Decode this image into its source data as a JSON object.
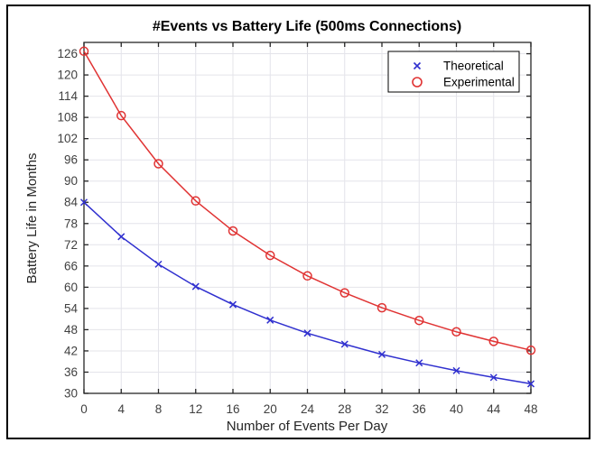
{
  "figure": {
    "background_color": "#ffffff",
    "border_color": "#000000",
    "axes_color": "#262626",
    "grid_color": "#e4e4ea",
    "tick_label_color": "#404040"
  },
  "chart_data": {
    "type": "line",
    "title": "#Events vs Battery Life (500ms Connections)",
    "xlabel": "Number of Events Per Day",
    "ylabel": "Battery Life in Months",
    "x": [
      0,
      4,
      8,
      12,
      16,
      20,
      24,
      28,
      32,
      36,
      40,
      44,
      48
    ],
    "xticks": [
      0,
      4,
      8,
      12,
      16,
      20,
      24,
      28,
      32,
      36,
      40,
      44,
      48
    ],
    "yticks": [
      30,
      36,
      42,
      48,
      54,
      60,
      66,
      72,
      78,
      84,
      90,
      96,
      102,
      108,
      114,
      120,
      126
    ],
    "xlim": [
      0,
      48
    ],
    "ylim": [
      30,
      129.2
    ],
    "grid": true,
    "legend_position": "inside-top-right",
    "series": [
      {
        "name": "Theoretical",
        "marker": "x",
        "color": "#3030cf",
        "values": [
          84.0,
          74.3,
          66.5,
          60.2,
          55.1,
          50.7,
          47.0,
          43.9,
          41.0,
          38.6,
          36.4,
          34.5,
          32.7
        ]
      },
      {
        "name": "Experimental",
        "marker": "o",
        "color": "#e03333",
        "values": [
          126.7,
          108.5,
          94.9,
          84.4,
          75.9,
          69.0,
          63.2,
          58.4,
          54.2,
          50.6,
          47.4,
          44.7,
          42.2
        ]
      }
    ]
  }
}
